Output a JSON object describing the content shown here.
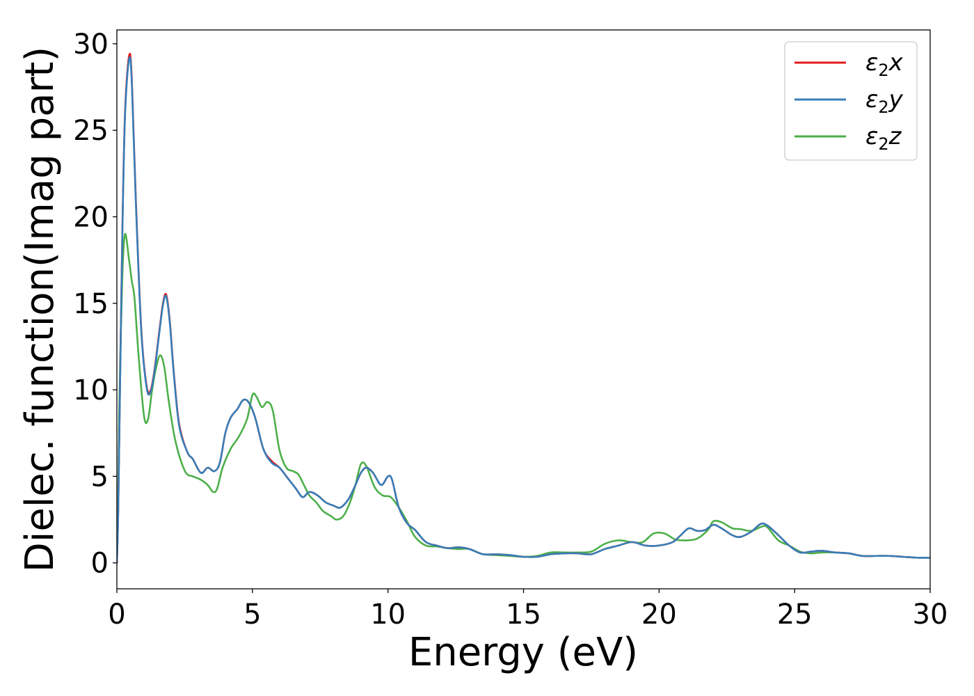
{
  "chart_data": {
    "type": "line",
    "xlabel": "Energy (eV)",
    "ylabel": "Dielec. function(Imag part)",
    "xlim": [
      0,
      30
    ],
    "ylim": [
      -1.5,
      30.8
    ],
    "xticks": [
      0,
      5,
      10,
      15,
      20,
      25,
      30
    ],
    "yticks": [
      0,
      5,
      10,
      15,
      20,
      25,
      30
    ],
    "grid": false,
    "legend_position": "top-right",
    "series": [
      {
        "name": "ε2x",
        "legend": {
          "base": "ε",
          "sub": "2",
          "suffix": "x"
        },
        "color": "#e41a1c",
        "x": [
          0.0,
          0.05,
          0.1,
          0.2,
          0.3,
          0.45,
          0.55,
          0.7,
          0.9,
          1.1,
          1.25,
          1.4,
          1.55,
          1.7,
          1.82,
          1.95,
          2.1,
          2.3,
          2.6,
          2.8,
          3.1,
          3.35,
          3.6,
          3.8,
          4.0,
          4.2,
          4.45,
          4.65,
          4.85,
          5.1,
          5.4,
          5.7,
          6.0,
          6.3,
          6.6,
          6.85,
          7.1,
          7.4,
          7.7,
          8.0,
          8.25,
          8.55,
          8.8,
          9.0,
          9.2,
          9.45,
          9.75,
          10.0,
          10.15,
          10.4,
          10.7,
          11.0,
          11.4,
          11.8,
          12.2,
          12.6,
          13.0,
          13.5,
          14.0,
          14.5,
          15.0,
          15.5,
          16.0,
          16.5,
          17.0,
          17.5,
          18.0,
          18.5,
          19.0,
          19.5,
          20.0,
          20.5,
          20.8,
          21.1,
          21.4,
          21.7,
          22.0,
          22.3,
          22.7,
          23.0,
          23.4,
          23.75,
          24.0,
          24.4,
          24.8,
          25.2,
          25.6,
          26.0,
          26.5,
          27.0,
          27.5,
          28.0,
          28.5,
          29.0,
          29.5,
          30.0
        ],
        "y": [
          0.0,
          3.0,
          8.5,
          19.0,
          26.0,
          29.3,
          28.0,
          21.0,
          13.5,
          10.2,
          10.0,
          11.3,
          13.2,
          15.0,
          15.5,
          14.0,
          11.0,
          8.0,
          6.4,
          6.0,
          5.2,
          5.5,
          5.3,
          5.8,
          7.5,
          8.4,
          8.9,
          9.4,
          9.3,
          8.4,
          6.6,
          5.9,
          5.5,
          4.9,
          4.3,
          3.8,
          4.1,
          3.9,
          3.5,
          3.3,
          3.2,
          3.7,
          4.5,
          5.2,
          5.5,
          5.2,
          4.5,
          5.0,
          4.8,
          3.2,
          2.3,
          1.9,
          1.2,
          1.0,
          0.85,
          0.9,
          0.8,
          0.5,
          0.5,
          0.45,
          0.35,
          0.35,
          0.5,
          0.55,
          0.55,
          0.5,
          0.8,
          1.0,
          1.2,
          1.0,
          1.0,
          1.2,
          1.6,
          2.0,
          1.85,
          1.9,
          2.2,
          2.0,
          1.6,
          1.5,
          1.8,
          2.25,
          2.15,
          1.6,
          1.0,
          0.6,
          0.65,
          0.7,
          0.6,
          0.55,
          0.4,
          0.4,
          0.4,
          0.35,
          0.3,
          0.3
        ]
      },
      {
        "name": "ε2y",
        "legend": {
          "base": "ε",
          "sub": "2",
          "suffix": "y"
        },
        "color": "#377eb8",
        "x": [
          0.0,
          0.05,
          0.1,
          0.2,
          0.3,
          0.45,
          0.55,
          0.7,
          0.9,
          1.1,
          1.25,
          1.4,
          1.55,
          1.7,
          1.82,
          1.95,
          2.1,
          2.3,
          2.6,
          2.8,
          3.1,
          3.35,
          3.6,
          3.8,
          4.0,
          4.2,
          4.45,
          4.65,
          4.85,
          5.1,
          5.4,
          5.7,
          6.0,
          6.3,
          6.6,
          6.85,
          7.1,
          7.4,
          7.7,
          8.0,
          8.25,
          8.55,
          8.8,
          9.0,
          9.2,
          9.45,
          9.75,
          10.0,
          10.15,
          10.4,
          10.7,
          11.0,
          11.4,
          11.8,
          12.2,
          12.6,
          13.0,
          13.5,
          14.0,
          14.5,
          15.0,
          15.5,
          16.0,
          16.5,
          17.0,
          17.5,
          18.0,
          18.5,
          19.0,
          19.5,
          20.0,
          20.5,
          20.8,
          21.1,
          21.4,
          21.7,
          22.0,
          22.3,
          22.7,
          23.0,
          23.4,
          23.75,
          24.0,
          24.4,
          24.8,
          25.2,
          25.6,
          26.0,
          26.5,
          27.0,
          27.5,
          28.0,
          28.5,
          29.0,
          29.5,
          30.0
        ],
        "y": [
          0.0,
          3.0,
          8.4,
          18.8,
          25.8,
          29.1,
          27.8,
          20.8,
          13.4,
          10.1,
          9.9,
          11.2,
          13.1,
          14.9,
          15.4,
          13.9,
          10.9,
          7.9,
          6.4,
          6.0,
          5.2,
          5.5,
          5.3,
          5.8,
          7.5,
          8.4,
          8.9,
          9.4,
          9.3,
          8.4,
          6.6,
          5.8,
          5.5,
          4.9,
          4.3,
          3.8,
          4.1,
          3.9,
          3.5,
          3.3,
          3.2,
          3.7,
          4.5,
          5.2,
          5.5,
          5.2,
          4.5,
          5.0,
          4.8,
          3.2,
          2.3,
          1.9,
          1.2,
          1.0,
          0.85,
          0.9,
          0.8,
          0.5,
          0.5,
          0.45,
          0.35,
          0.35,
          0.5,
          0.55,
          0.55,
          0.5,
          0.8,
          1.0,
          1.2,
          1.0,
          1.0,
          1.2,
          1.6,
          2.0,
          1.85,
          1.9,
          2.2,
          2.0,
          1.6,
          1.5,
          1.8,
          2.25,
          2.15,
          1.6,
          1.0,
          0.6,
          0.65,
          0.7,
          0.6,
          0.55,
          0.4,
          0.4,
          0.4,
          0.35,
          0.3,
          0.3
        ]
      },
      {
        "name": "ε2z",
        "legend": {
          "base": "ε",
          "sub": "2",
          "suffix": "z"
        },
        "color": "#4daf4a",
        "x": [
          0.0,
          0.05,
          0.1,
          0.2,
          0.3,
          0.45,
          0.55,
          0.65,
          0.8,
          1.0,
          1.15,
          1.3,
          1.45,
          1.6,
          1.75,
          1.9,
          2.1,
          2.3,
          2.55,
          2.8,
          3.1,
          3.35,
          3.55,
          3.7,
          3.9,
          4.2,
          4.5,
          4.8,
          5.0,
          5.15,
          5.35,
          5.55,
          5.75,
          6.0,
          6.25,
          6.5,
          6.7,
          6.9,
          7.1,
          7.35,
          7.6,
          7.9,
          8.1,
          8.35,
          8.6,
          8.8,
          9.0,
          9.2,
          9.5,
          9.8,
          10.1,
          10.4,
          10.7,
          11.0,
          11.4,
          11.8,
          12.2,
          12.6,
          13.0,
          13.5,
          14.0,
          14.5,
          15.0,
          15.5,
          16.0,
          16.5,
          17.0,
          17.5,
          18.0,
          18.5,
          19.0,
          19.4,
          19.8,
          20.2,
          20.6,
          21.0,
          21.4,
          21.8,
          22.0,
          22.3,
          22.7,
          23.0,
          23.4,
          23.8,
          24.0,
          24.4,
          24.8,
          25.2,
          25.6,
          26.0,
          26.5,
          27.0,
          27.5,
          28.0,
          28.5,
          29.0,
          29.5,
          30.0
        ],
        "y": [
          0.0,
          4.0,
          10.0,
          16.5,
          19.0,
          17.5,
          16.3,
          15.3,
          12.0,
          8.5,
          8.3,
          10.0,
          11.3,
          12.0,
          11.3,
          9.5,
          7.5,
          6.2,
          5.2,
          5.0,
          4.8,
          4.5,
          4.1,
          4.3,
          5.5,
          6.6,
          7.3,
          8.3,
          9.7,
          9.6,
          9.0,
          9.3,
          8.8,
          6.5,
          5.5,
          5.3,
          5.1,
          4.5,
          3.9,
          3.5,
          3.0,
          2.7,
          2.5,
          2.7,
          3.5,
          4.5,
          5.7,
          5.6,
          4.4,
          3.9,
          3.8,
          3.2,
          2.4,
          1.5,
          1.0,
          0.95,
          0.85,
          0.8,
          0.8,
          0.5,
          0.45,
          0.4,
          0.35,
          0.4,
          0.6,
          0.6,
          0.6,
          0.65,
          1.1,
          1.3,
          1.2,
          1.2,
          1.7,
          1.7,
          1.35,
          1.3,
          1.4,
          1.9,
          2.4,
          2.35,
          2.0,
          1.95,
          1.85,
          2.1,
          2.05,
          1.3,
          1.0,
          0.65,
          0.55,
          0.6,
          0.6,
          0.55,
          0.4,
          0.4,
          0.4,
          0.35,
          0.3,
          0.3
        ]
      }
    ]
  }
}
